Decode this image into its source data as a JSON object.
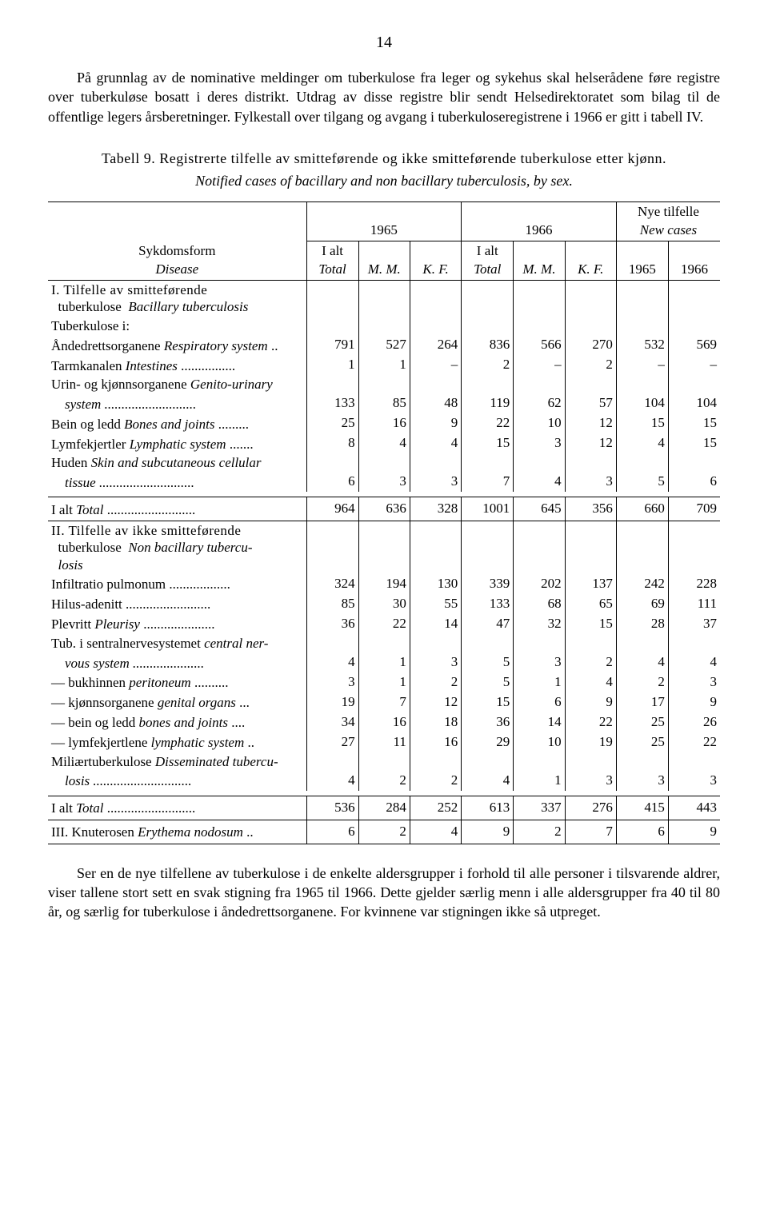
{
  "page_number": "14",
  "intro_para": "På grunnlag av de nominative meldinger om tuberkulose fra leger og sykehus skal helserådene føre registre over tuberkuløse bosatt i deres distrikt. Utdrag av disse registre blir sendt Helsedirektoratet som bilag til de offentlige legers årsberetninger. Fylkestall over tilgang og avgang i tuberkuloseregistrene i 1966 er gitt i tabell IV.",
  "table_title": "Tabell 9. Registrerte tilfelle av smitteførende og ikke smitteførende tuberkulose etter kjønn.",
  "table_subtitle": "Notified cases of bacillary and non bacillary tuberculosis, by sex.",
  "headers": {
    "disease_nb": "Sykdomsform",
    "disease_en": "Disease",
    "year65": "1965",
    "year66": "1966",
    "newcases_nb": "Nye tilfelle",
    "newcases_en": "New cases",
    "ialt": "I alt",
    "total": "Total",
    "mm": "M. M.",
    "kf": "K. F.",
    "y65": "1965",
    "y66": "1966"
  },
  "sectionI_title": "I. Tilfelle av smitteførende tuberkulose  Bacillary tuberculosis",
  "sectionI_sub": "Tuberkulose i:",
  "rowsI": [
    {
      "label": "Åndedrettsorganene Respiratory system ..",
      "v": [
        791,
        527,
        264,
        836,
        566,
        270,
        532,
        569
      ]
    },
    {
      "label": "Tarmkanalen Intestines ................",
      "v": [
        1,
        1,
        "–",
        2,
        "–",
        2,
        "–",
        "–"
      ]
    },
    {
      "label": "Urin- og kjønnsorganene Genito-urinary",
      "label2": "system ...........................",
      "v": [
        133,
        85,
        48,
        119,
        62,
        57,
        104,
        104
      ]
    },
    {
      "label": "Bein og ledd Bones and joints .........",
      "v": [
        25,
        16,
        9,
        22,
        10,
        12,
        15,
        15
      ]
    },
    {
      "label": "Lymfekjertler Lymphatic system .......",
      "v": [
        8,
        4,
        4,
        15,
        3,
        12,
        4,
        15
      ]
    },
    {
      "label": "Huden Skin and subcutaneous cellular",
      "label2": "tissue ............................",
      "v": [
        6,
        3,
        3,
        7,
        4,
        3,
        5,
        6
      ]
    }
  ],
  "totalI_label": "I alt Total .........................",
  "totalI": [
    964,
    636,
    328,
    1001,
    645,
    356,
    660,
    709
  ],
  "sectionII_title": "II. Tilfelle av ikke smitteførende tuberkulose  Non bacillary tuberculosis",
  "rowsII": [
    {
      "label": "Infiltratio pulmonum ..................",
      "v": [
        324,
        194,
        130,
        339,
        202,
        137,
        242,
        228
      ]
    },
    {
      "label": "Hilus-adenitt .........................",
      "v": [
        85,
        30,
        55,
        133,
        68,
        65,
        69,
        111
      ]
    },
    {
      "label": "Plevritt Pleurisy .....................",
      "v": [
        36,
        22,
        14,
        47,
        32,
        15,
        28,
        37
      ]
    },
    {
      "label": "Tub. i sentralnervesystemet central ner-",
      "label2": "vous system .....................",
      "v": [
        4,
        1,
        3,
        5,
        3,
        2,
        4,
        4
      ]
    },
    {
      "label": "—   bukhinnen peritoneum ..........",
      "v": [
        3,
        1,
        2,
        5,
        1,
        4,
        2,
        3
      ]
    },
    {
      "label": "—   kjønnsorganene genital organs ...",
      "v": [
        19,
        7,
        12,
        15,
        6,
        9,
        17,
        9
      ]
    },
    {
      "label": "—   bein og ledd bones and joints ....",
      "v": [
        34,
        16,
        18,
        36,
        14,
        22,
        25,
        26
      ]
    },
    {
      "label": "—   lymfekjertlene lymphatic system ..",
      "v": [
        27,
        11,
        16,
        29,
        10,
        19,
        25,
        22
      ]
    },
    {
      "label": "Miliærtuberkulose Disseminated tubercu-",
      "label2": "losis .............................",
      "v": [
        4,
        2,
        2,
        4,
        1,
        3,
        3,
        3
      ]
    }
  ],
  "totalII_label": "I alt Total .........................",
  "totalII": [
    536,
    284,
    252,
    613,
    337,
    276,
    415,
    443
  ],
  "rowIII_label": "III. Knuterosen Erythema nodosum ..",
  "rowIII": [
    6,
    2,
    4,
    9,
    2,
    7,
    6,
    9
  ],
  "footer_para": "Ser en de nye tilfellene av tuberkulose i de enkelte aldersgrupper i forhold til alle personer i tilsvarende aldrer, viser tallene stort sett en svak stigning fra 1965 til 1966. Dette gjelder særlig menn i alle aldersgrupper fra 40 til 80 år, og særlig for tuberkulose i åndedrettsorganene. For kvinnene var stigningen ikke så utpreget."
}
